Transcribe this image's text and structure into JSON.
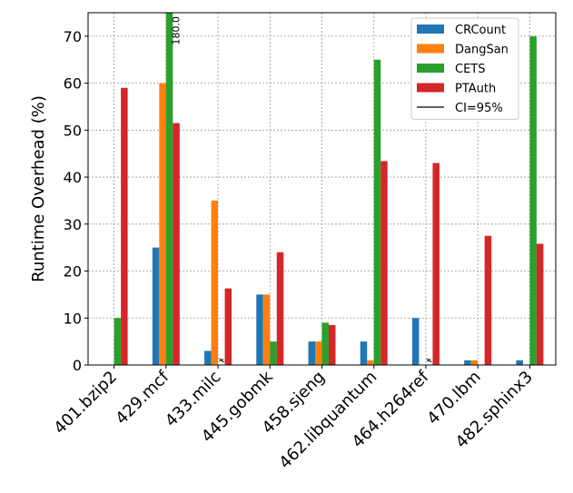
{
  "chart_data": {
    "type": "bar",
    "y_label": "Runtime Overhead (%)",
    "categories": [
      "401.bzip2",
      "429.mcf",
      "433.milc",
      "445.gobmk",
      "458.sjeng",
      "462.libquantum",
      "464.h264ref",
      "470.lbm",
      "482.sphinx3"
    ],
    "series": [
      {
        "name": "CRCount",
        "color": "#1f77b4",
        "values": [
          null,
          25,
          3,
          15,
          5,
          5,
          10,
          1,
          1
        ]
      },
      {
        "name": "DangSan",
        "color": "#ff7f0e",
        "values": [
          null,
          60,
          35,
          15,
          5,
          1,
          null,
          1,
          null
        ]
      },
      {
        "name": "CETS",
        "color": "#2ca02c",
        "values": [
          10,
          180,
          null,
          5,
          9,
          65,
          null,
          null,
          70
        ],
        "value_labels": [
          null,
          "180.0",
          "✗",
          null,
          null,
          null,
          "✗",
          null,
          null
        ]
      },
      {
        "name": "PTAuth",
        "color": "#d62728",
        "values": [
          59,
          51.5,
          16.3,
          24,
          8.5,
          43.4,
          43,
          27.5,
          25.8
        ]
      }
    ],
    "ci_label": "CI=95%",
    "ylim": [
      0,
      75
    ],
    "yticks": [
      0,
      10,
      20,
      30,
      40,
      50,
      60,
      70
    ],
    "grid": true,
    "legend": "upper right"
  }
}
